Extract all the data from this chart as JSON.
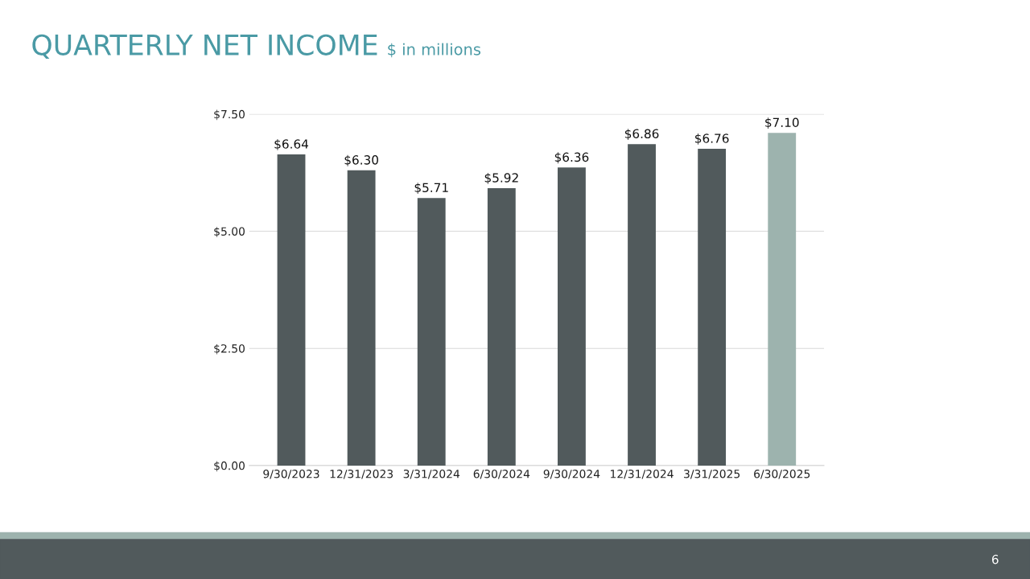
{
  "chart_data": {
    "type": "bar",
    "title": "QUARTERLY NET INCOME",
    "subtitle": "$ in millions",
    "categories": [
      "9/30/2023",
      "12/31/2023",
      "3/31/2024",
      "6/30/2024",
      "9/30/2024",
      "12/31/2024",
      "3/31/2025",
      "6/30/2025"
    ],
    "values": [
      6.64,
      6.3,
      5.71,
      5.92,
      6.36,
      6.86,
      6.76,
      7.1
    ],
    "colors": [
      "#515a5c",
      "#515a5c",
      "#515a5c",
      "#515a5c",
      "#515a5c",
      "#515a5c",
      "#515a5c",
      "#9db3ae"
    ],
    "value_labels": [
      "$6.64",
      "$6.30",
      "$5.71",
      "$5.92",
      "$6.36",
      "$6.86",
      "$6.76",
      "$7.10"
    ],
    "ylim": [
      0,
      7.5
    ],
    "yticks": [
      {
        "value": 0,
        "label": "$0.00"
      },
      {
        "value": 2.5,
        "label": "$2.50"
      },
      {
        "value": 5,
        "label": "$5.00"
      },
      {
        "value": 7.5,
        "label": "$7.50"
      }
    ],
    "grid": "y",
    "legend": false,
    "annotations": [
      "6"
    ]
  }
}
